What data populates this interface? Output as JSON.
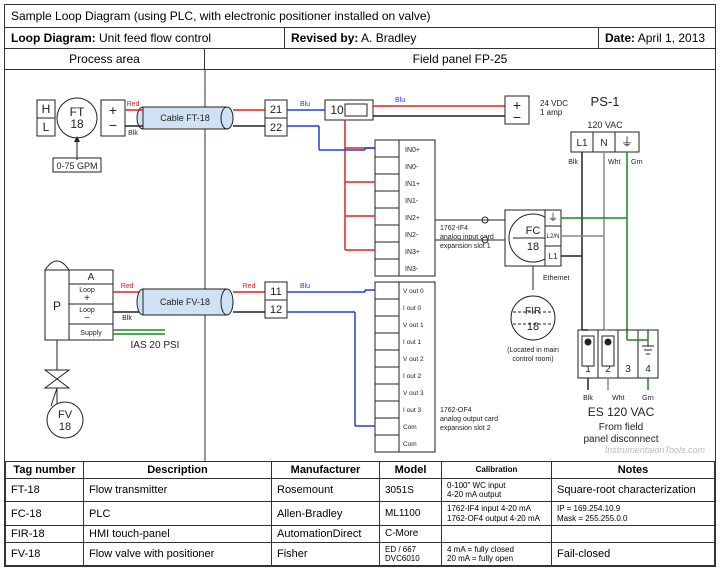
{
  "caption": "Sample Loop Diagram (using PLC, with electronic positioner installed on valve)",
  "header": {
    "loop_label": "Loop Diagram:",
    "loop_value": "Unit feed flow control",
    "revised_label": "Revised by:",
    "revised_value": "A. Bradley",
    "date_label": "Date:",
    "date_value": "April 1, 2013"
  },
  "areas": {
    "process": "Process area",
    "panel": "Field panel FP-25"
  },
  "diagram": {
    "colors": {
      "red": "#d22",
      "blue": "#2040d0",
      "green": "#1a8a1a",
      "black": "#222",
      "cable_fill": "#cfe2f3",
      "box_fill": "#fff"
    },
    "ft_block": {
      "tag1": "FT",
      "tag2": "18",
      "hl_h": "H",
      "hl_l": "L",
      "plus": "+",
      "minus": "−",
      "range": "0-75 GPM"
    },
    "cable1": {
      "label": "Cable FT-18",
      "top_color": "Red",
      "bot_color": "Blk",
      "term1": "21",
      "term2": "22"
    },
    "plc_in": {
      "num": "10",
      "top_color": "Blu",
      "bot_color": "Blu",
      "terms": [
        "IN0+",
        "IN0-",
        "IN1+",
        "IN1-",
        "IN2+",
        "IN2-",
        "IN3+",
        "IN3-"
      ],
      "caption": "1762-IF4\nanalog input card\nexpansion slot 1"
    },
    "ps": {
      "label": "PS-1",
      "plus": "+",
      "minus": "−",
      "spec": "24 VDC\n1 amp",
      "ac": "120 VAC",
      "L1": "L1",
      "N": "N",
      "gnd": "⏚",
      "c_blk": "Blk",
      "c_wht": "Wht",
      "c_grn": "Grn"
    },
    "positioner": {
      "A": "A",
      "P": "P",
      "loop_p": "Loop\n+",
      "loop_m": "Loop\n−",
      "supply": "Supply",
      "ias": "IAS 20 PSI"
    },
    "cable2": {
      "label": "Cable FV-18",
      "top_color": "Red",
      "bot_color": "Blk",
      "term1": "11",
      "term2": "12",
      "wire_r": "Red",
      "wire_b": "Blu"
    },
    "plc_out": {
      "terms": [
        "V out 0",
        "I out 0",
        "V out 1",
        "I out 1",
        "V out 2",
        "I out 2",
        "V out 3",
        "I out 3",
        "Com",
        "Com"
      ],
      "caption": "1762-OF4\nanalog output card\nexpansion slot 2"
    },
    "fv": {
      "tag1": "FV",
      "tag2": "18"
    },
    "fc": {
      "tag1": "FC",
      "tag2": "18",
      "L1": "L1",
      "L2N": "L2/N",
      "gnd": "⏚",
      "eth": "Ethernet"
    },
    "fir": {
      "tag1": "FIR",
      "tag2": "18",
      "note": "(Located in main\ncontrol room)"
    },
    "es": {
      "nums": [
        "1",
        "2",
        "3",
        "4"
      ],
      "c_blk": "Blk",
      "c_wht": "Wht",
      "c_grn": "Grn",
      "label": "ES 120 VAC",
      "from": "From field\npanel disconnect"
    }
  },
  "table": {
    "headers": [
      "Tag number",
      "Description",
      "Manufacturer",
      "Model",
      "Calibration",
      "Notes"
    ],
    "rows": [
      {
        "tag": "FT-18",
        "desc": "Flow transmitter",
        "mfr": "Rosemount",
        "model": "3051S",
        "cal": "0-100\" WC input\n4-20 mA output",
        "notes": "Square-root characterization"
      },
      {
        "tag": "FC-18",
        "desc": "PLC",
        "mfr": "Allen-Bradley",
        "model": "ML1100",
        "cal": "1762-IF4 input   4-20 mA\n1762-OF4 output  4-20 mA",
        "notes": "IP = 169.254.10.9\nMask = 255.255.0.0"
      },
      {
        "tag": "FIR-18",
        "desc": "HMI touch-panel",
        "mfr": "AutomationDirect",
        "model": "C-More",
        "cal": "",
        "notes": ""
      },
      {
        "tag": "FV-18",
        "desc": "Flow valve with positioner",
        "mfr": "Fisher",
        "model": "ED / 667\nDVC6010",
        "cal": "4 mA = fully closed\n20 mA = fully open",
        "notes": "Fail-closed"
      }
    ]
  },
  "watermark": "InstrumentaionTools.com"
}
